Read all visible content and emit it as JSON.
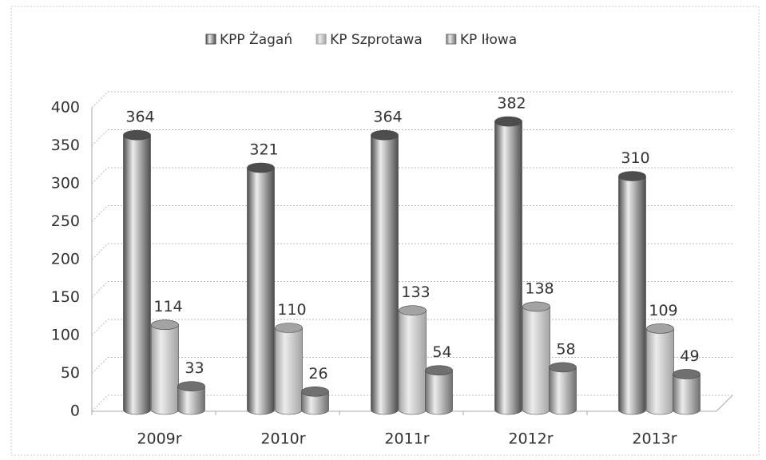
{
  "chart_data": {
    "type": "bar",
    "categories": [
      "2009r",
      "2010r",
      "2011r",
      "2012r",
      "2013r"
    ],
    "series": [
      {
        "name": "KPP Żagań",
        "color": "#4d4d4d",
        "values": [
          364,
          321,
          364,
          382,
          310
        ]
      },
      {
        "name": "KP Szprotawa",
        "color": "#a3a3a3",
        "values": [
          114,
          110,
          133,
          138,
          109
        ]
      },
      {
        "name": "KP Iłowa",
        "color": "#707070",
        "values": [
          33,
          26,
          54,
          58,
          49
        ]
      }
    ],
    "ylim": [
      0,
      400
    ],
    "yticks": [
      0,
      50,
      100,
      150,
      200,
      250,
      300,
      350,
      400
    ],
    "grid": true
  }
}
